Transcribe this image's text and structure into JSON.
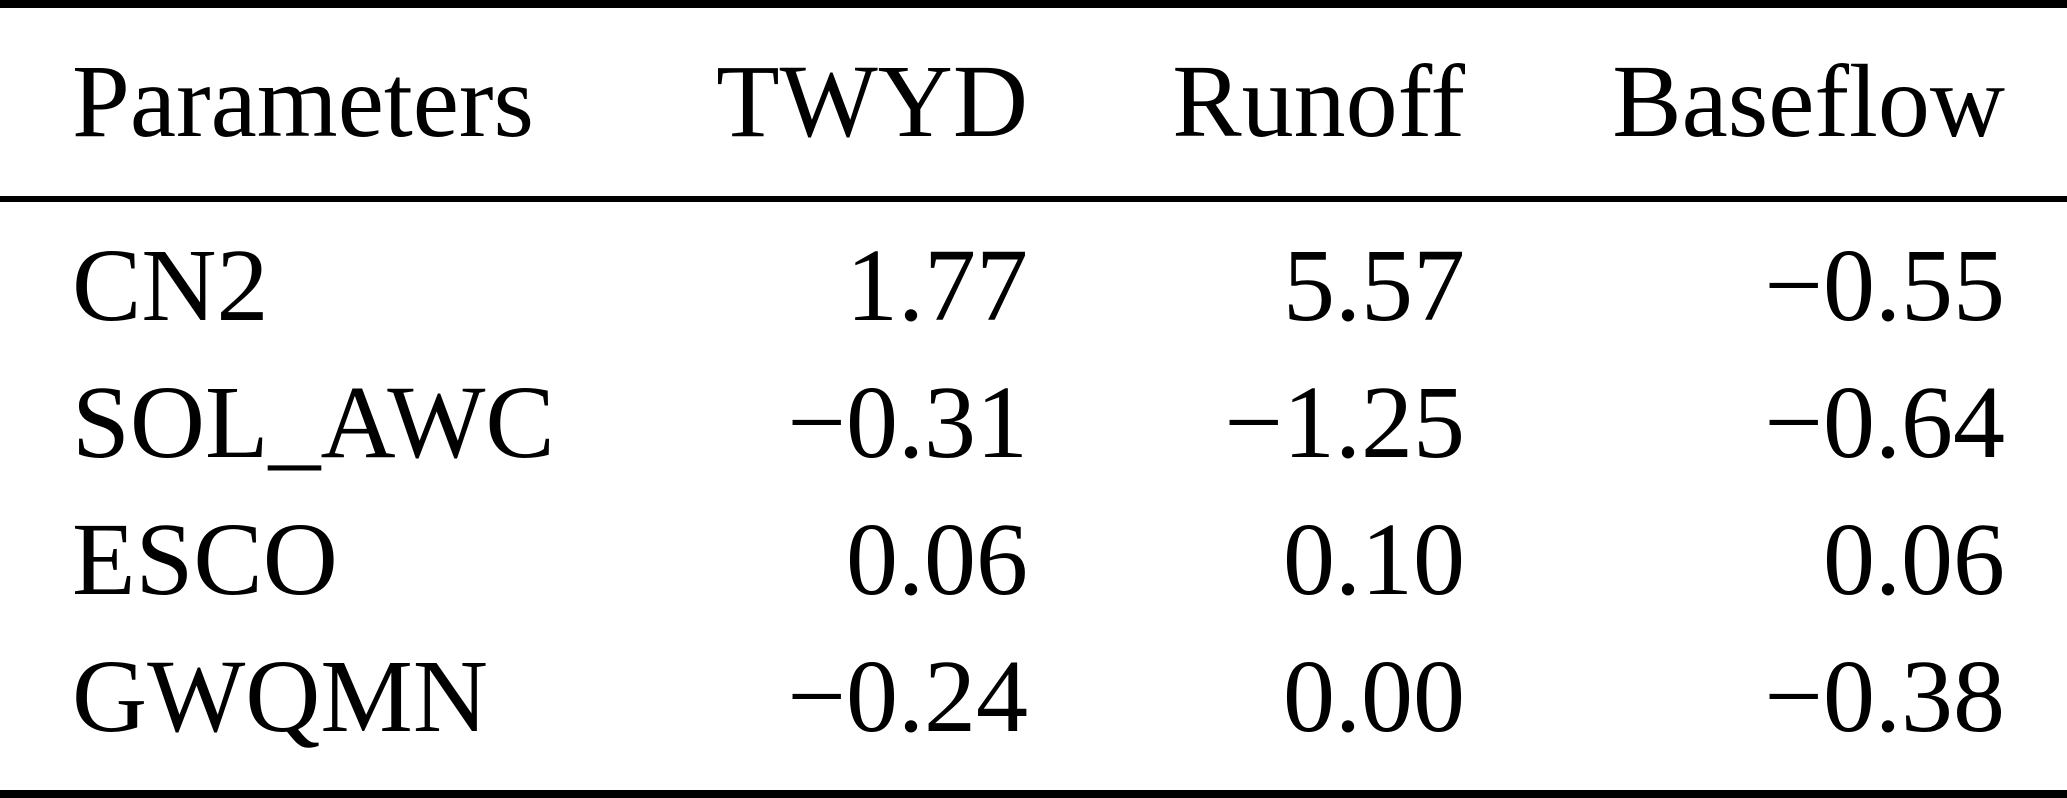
{
  "table": {
    "columns": [
      "Parameters",
      "TWYD",
      "Runoff",
      "Baseflow"
    ],
    "rows": [
      {
        "cells": [
          "CN2",
          "1.77",
          "5.57",
          "−0.55"
        ]
      },
      {
        "cells": [
          "SOL_AWC",
          "−0.31",
          "−1.25",
          "−0.64"
        ]
      },
      {
        "cells": [
          "ESCO",
          "0.06",
          "0.10",
          "0.06"
        ]
      },
      {
        "cells": [
          "GWQMN",
          "−0.24",
          "0.00",
          "−0.38"
        ]
      }
    ]
  },
  "colors": {
    "text": "#000000",
    "background": "#ffffff",
    "rule": "#000000"
  }
}
